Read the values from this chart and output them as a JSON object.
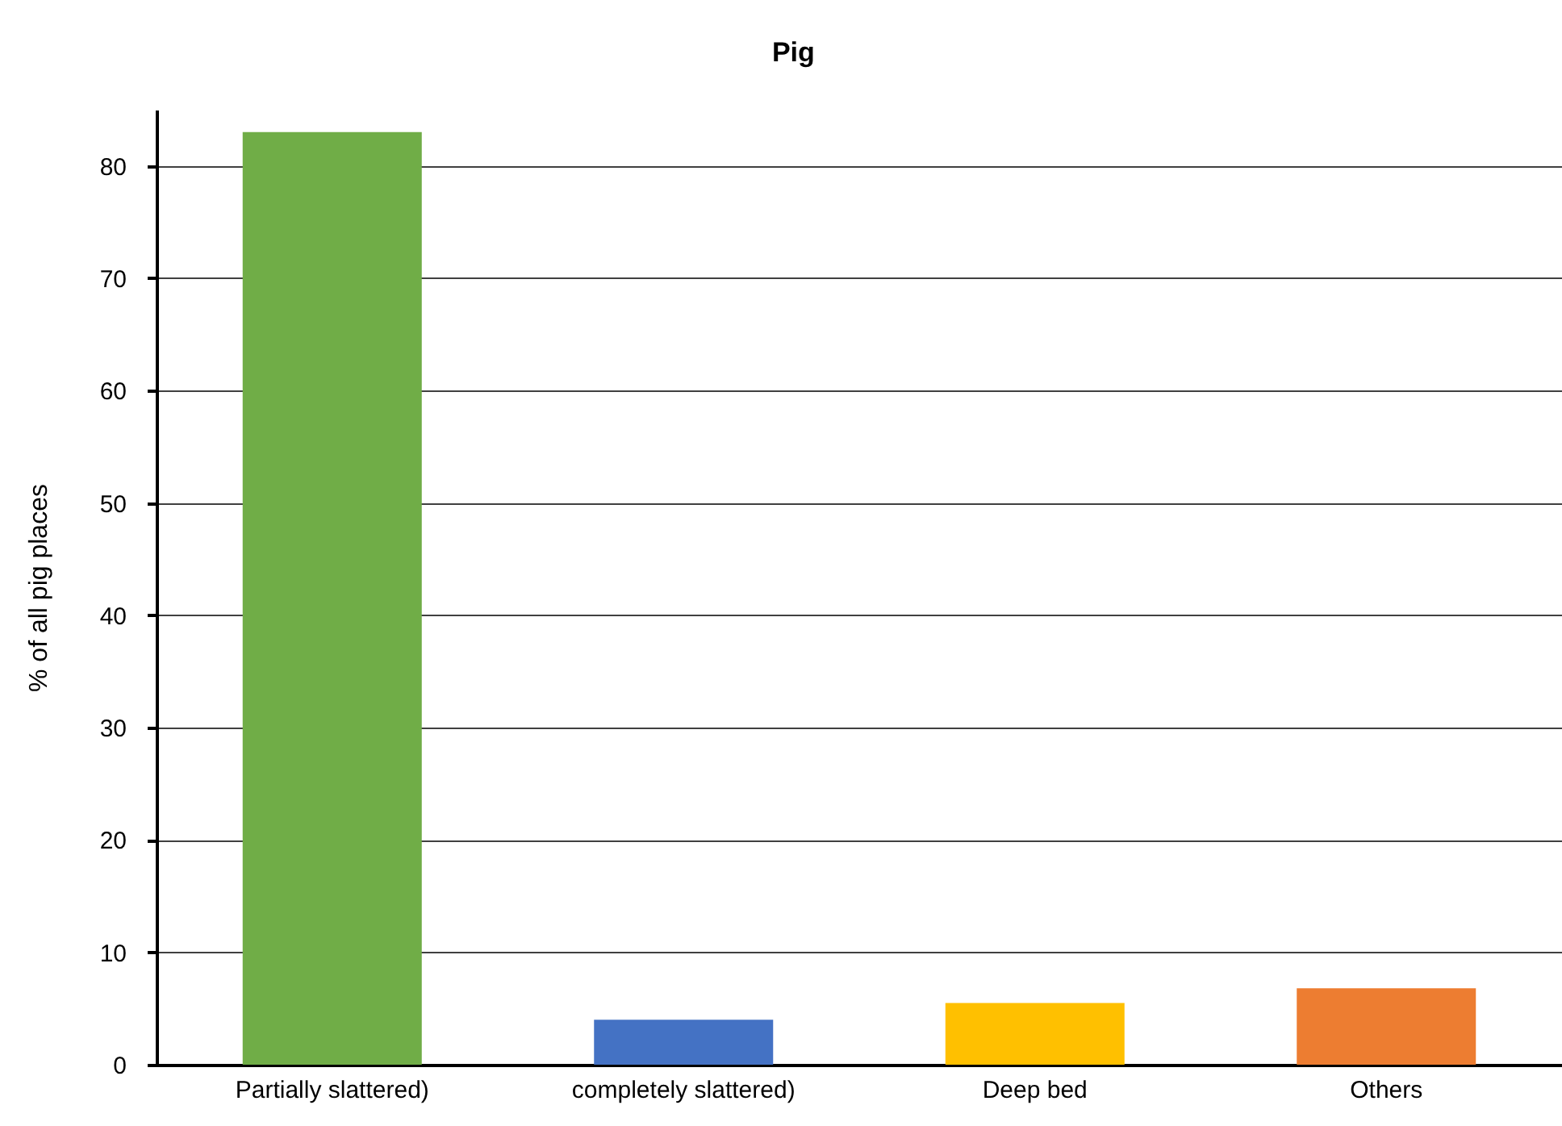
{
  "chart_data": {
    "type": "bar",
    "title": "Pig",
    "ylabel": "% of all pig places",
    "categories": [
      "Partially slattered)",
      "completely slattered)",
      "Deep bed",
      "Others"
    ],
    "values": [
      83,
      4.0,
      5.5,
      6.8
    ],
    "colors": [
      "#70ad47",
      "#4472c4",
      "#ffc000",
      "#ed7d31"
    ],
    "ylim": [
      0,
      85
    ],
    "yticks": [
      0,
      10,
      20,
      30,
      40,
      50,
      60,
      70,
      80
    ],
    "grid": "y"
  }
}
